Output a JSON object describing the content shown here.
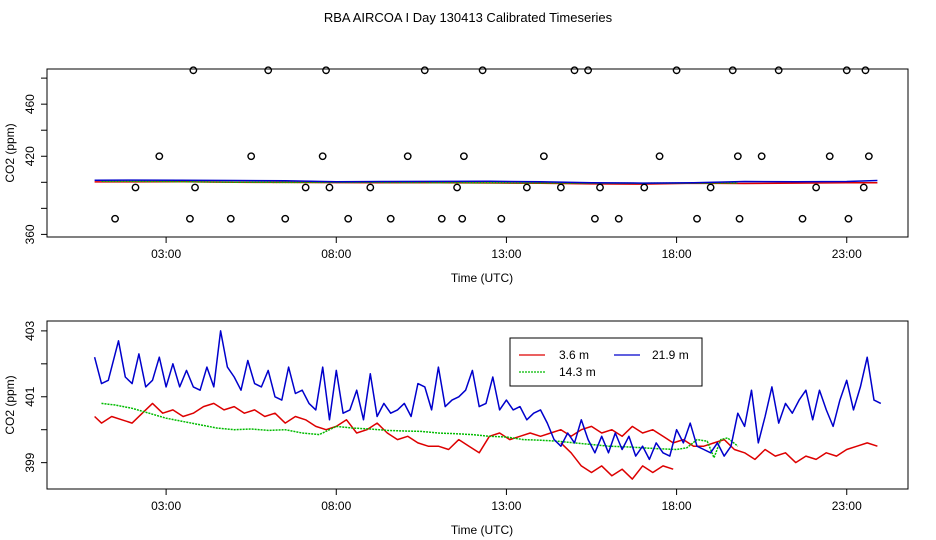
{
  "title": "RBA AIRCOA I  Day 130413  Calibrated Timeseries",
  "chart_data": [
    {
      "type": "line",
      "panel": "top",
      "xlabel": "Time (UTC)",
      "ylabel": "CO2 (ppm)",
      "xlim": [
        -0.5,
        24.8
      ],
      "ylim": [
        358,
        487
      ],
      "xticks": [
        3,
        8,
        13,
        18,
        23
      ],
      "xtick_labels": [
        "03:00",
        "08:00",
        "13:00",
        "18:00",
        "23:00"
      ],
      "yticks": [
        360,
        380,
        400,
        420,
        440,
        460,
        480
      ],
      "ytick_labels": [
        "360",
        "",
        "",
        "420",
        "",
        "460",
        ""
      ],
      "series": [
        {
          "name": "3.6 m",
          "color": "#dd0000",
          "x": [
            0.9,
            2,
            3.5,
            5,
            6.5,
            8,
            9.5,
            11,
            12.5,
            14,
            15.5,
            17,
            18.5,
            20,
            21.5,
            23,
            23.9
          ],
          "y": [
            400.3,
            400.3,
            400.5,
            400.0,
            399.9,
            399.8,
            399.6,
            399.6,
            399.5,
            399.3,
            398.8,
            398.6,
            399.3,
            399.1,
            399.4,
            399.6,
            399.7
          ]
        },
        {
          "name": "14.3 m",
          "color": "#00bb00",
          "x": [
            1.1,
            3,
            5,
            7,
            9,
            11,
            13,
            15,
            17,
            18.5,
            19.8
          ],
          "y": [
            400.8,
            400.6,
            400.1,
            399.9,
            399.9,
            399.8,
            399.6,
            399.4,
            399.3,
            399.4,
            399.5
          ]
        },
        {
          "name": "21.9 m",
          "color": "#0000cc",
          "x": [
            0.9,
            2,
            3.4,
            5,
            6.5,
            8,
            9.5,
            11,
            12.5,
            14,
            15.5,
            17,
            18.5,
            20,
            21.5,
            23,
            23.9
          ],
          "y": [
            401.5,
            401.7,
            401.6,
            401.4,
            401.2,
            400.4,
            400.6,
            400.7,
            400.8,
            400.5,
            399.7,
            399.4,
            399.6,
            400.6,
            400.4,
            400.6,
            401.4
          ]
        },
        {
          "name": "outliers",
          "color": "#000000",
          "style": "points",
          "x": [
            1.5,
            2.1,
            2.8,
            3.7,
            3.8,
            3.85,
            4.9,
            5.5,
            6.0,
            6.5,
            7.1,
            7.6,
            7.7,
            7.8,
            8.35,
            9.0,
            9.6,
            10.1,
            10.6,
            11.1,
            11.55,
            11.7,
            11.75,
            12.3,
            12.85,
            13.6,
            14.1,
            14.6,
            15.0,
            15.4,
            15.6,
            15.75,
            16.3,
            17.05,
            17.5,
            18.0,
            18.6,
            19.0,
            19.65,
            19.8,
            19.85,
            20.5,
            21.0,
            21.7,
            22.1,
            22.5,
            23.0,
            23.05,
            23.5,
            23.55,
            23.65
          ],
          "y": [
            372,
            396,
            420,
            372,
            486,
            396,
            372,
            420,
            486,
            372,
            396,
            420,
            486,
            396,
            372,
            396,
            372,
            420,
            486,
            372,
            396,
            372,
            420,
            486,
            372,
            396,
            420,
            396,
            486,
            486,
            372,
            396,
            372,
            396,
            420,
            486,
            372,
            396,
            486,
            420,
            372,
            420,
            486,
            372,
            396,
            420,
            486,
            372,
            396,
            486,
            420
          ]
        }
      ]
    },
    {
      "type": "line",
      "panel": "bottom",
      "xlabel": "Time (UTC)",
      "ylabel": "CO2 (ppm)",
      "xlim": [
        -0.5,
        24.8
      ],
      "ylim": [
        398.2,
        403.3
      ],
      "xticks": [
        3,
        8,
        13,
        18,
        23
      ],
      "xtick_labels": [
        "03:00",
        "08:00",
        "13:00",
        "18:00",
        "23:00"
      ],
      "yticks": [
        399,
        400,
        401,
        402,
        403
      ],
      "ytick_labels": [
        "399",
        "",
        "401",
        "",
        "403"
      ],
      "legend": {
        "position": "top-center",
        "columns": 2,
        "entries": [
          "3.6 m",
          "21.9 m",
          "14.3 m"
        ]
      },
      "series": [
        {
          "name": "3.6 m",
          "color": "#dd0000",
          "x": [
            0.9,
            1.1,
            1.4,
            1.7,
            2.0,
            2.3,
            2.6,
            2.9,
            3.2,
            3.5,
            3.8,
            4.1,
            4.4,
            4.7,
            5.0,
            5.3,
            5.6,
            5.9,
            6.2,
            6.5,
            6.8,
            7.1,
            7.4,
            7.7,
            8.0,
            8.3,
            8.6,
            8.9,
            9.2,
            9.5,
            9.8,
            10.1,
            10.4,
            10.7,
            11.0,
            11.3,
            11.6,
            11.9,
            12.2,
            12.5,
            12.8,
            13.1,
            13.4,
            13.7,
            14.0,
            14.3,
            14.6,
            14.9,
            15.2,
            15.5,
            15.8,
            16.1,
            16.4,
            16.7,
            17.0,
            17.3,
            17.6,
            17.9,
            18.2,
            18.5,
            18.8,
            19.1,
            19.4,
            19.7,
            20.0,
            20.3,
            20.6,
            20.9,
            21.2,
            21.5,
            21.8,
            22.1,
            22.4,
            22.7,
            23.0,
            23.3,
            23.6,
            23.9
          ],
          "y": [
            400.4,
            400.2,
            400.4,
            400.3,
            400.2,
            400.5,
            400.8,
            400.5,
            400.6,
            400.4,
            400.5,
            400.7,
            400.8,
            400.6,
            400.7,
            400.5,
            400.6,
            400.4,
            400.5,
            400.2,
            400.4,
            400.3,
            400.1,
            400.0,
            400.1,
            400.3,
            399.9,
            400.0,
            400.2,
            399.9,
            399.7,
            399.8,
            399.6,
            399.5,
            399.5,
            399.4,
            399.7,
            399.5,
            399.3,
            399.8,
            399.9,
            399.7,
            399.8,
            399.9,
            399.8,
            399.9,
            400.0,
            399.8,
            400.0,
            400.1,
            399.9,
            400.0,
            399.8,
            400.1,
            399.9,
            400.0,
            399.8,
            399.6,
            399.7,
            399.5,
            399.5,
            399.6,
            399.7,
            399.4,
            399.3,
            399.1,
            399.4,
            399.2,
            399.3,
            399.0,
            399.2,
            399.1,
            399.3,
            399.2,
            399.4,
            399.5,
            399.6,
            399.5
          ],
          "xn": [
            14.6,
            14.9,
            15.2,
            15.5,
            15.8,
            16.1,
            16.4,
            16.7,
            17.0,
            17.3,
            17.6,
            17.9
          ],
          "yn": [
            399.6,
            399.3,
            398.9,
            398.7,
            398.9,
            398.6,
            398.8,
            398.5,
            398.9,
            398.7,
            398.9,
            398.8
          ]
        },
        {
          "name": "14.3 m",
          "color": "#00bb00",
          "x": [
            1.1,
            1.5,
            2.0,
            2.5,
            3.0,
            3.5,
            4.0,
            4.5,
            5.0,
            5.5,
            6.0,
            6.5,
            7.0,
            7.5,
            8.0,
            8.5,
            9.0,
            9.5,
            10.0,
            10.5,
            11.0,
            11.5,
            12.0,
            12.5,
            13.0,
            13.5,
            14.0,
            14.5,
            15.0,
            15.5,
            16.0,
            16.5,
            17.0,
            17.5,
            18.0,
            18.3,
            18.6,
            18.9,
            19.1,
            19.3,
            19.5,
            19.8
          ],
          "y": [
            400.8,
            400.75,
            400.65,
            400.5,
            400.35,
            400.25,
            400.15,
            400.05,
            400.0,
            400.02,
            399.98,
            400.0,
            399.9,
            399.85,
            400.1,
            400.05,
            400.02,
            399.98,
            399.96,
            399.95,
            399.9,
            399.88,
            399.85,
            399.8,
            399.78,
            399.7,
            399.68,
            399.65,
            399.6,
            399.55,
            399.5,
            399.48,
            399.45,
            399.42,
            399.4,
            399.45,
            399.7,
            399.65,
            399.15,
            399.7,
            399.75,
            399.5
          ]
        },
        {
          "name": "21.9 m",
          "color": "#0000cc",
          "x": [
            0.9,
            1.1,
            1.3,
            1.6,
            1.8,
            2.0,
            2.2,
            2.4,
            2.6,
            2.8,
            3.0,
            3.2,
            3.4,
            3.6,
            3.8,
            4.0,
            4.2,
            4.4,
            4.6,
            4.8,
            5.0,
            5.2,
            5.4,
            5.6,
            5.8,
            6.0,
            6.2,
            6.4,
            6.6,
            6.8,
            7.0,
            7.2,
            7.4,
            7.6,
            7.8,
            8.0,
            8.2,
            8.4,
            8.6,
            8.8,
            9.0,
            9.2,
            9.4,
            9.6,
            9.8,
            10.0,
            10.2,
            10.4,
            10.6,
            10.8,
            11.0,
            11.2,
            11.4,
            11.6,
            11.8,
            12.0,
            12.2,
            12.4,
            12.6,
            12.8,
            13.0,
            13.2,
            13.4,
            13.6,
            13.8,
            14.0,
            14.2,
            14.4,
            14.6,
            14.8,
            15.0,
            15.2,
            15.4,
            15.6,
            15.8,
            16.0,
            16.2,
            16.4,
            16.6,
            16.8,
            17.0,
            17.2,
            17.4,
            17.6,
            17.8,
            18.0,
            18.2,
            18.4,
            18.6,
            18.8,
            19.0,
            19.2,
            19.4,
            19.6,
            19.8,
            20.0,
            20.2,
            20.4,
            20.6,
            20.8,
            21.0,
            21.2,
            21.4,
            21.6,
            21.8,
            22.0,
            22.2,
            22.4,
            22.6,
            22.8,
            23.0,
            23.2,
            23.4,
            23.6,
            23.8,
            24.0
          ],
          "y": [
            402.2,
            401.4,
            401.5,
            402.7,
            401.6,
            401.4,
            402.3,
            401.3,
            401.5,
            402.2,
            401.3,
            402.0,
            401.3,
            401.8,
            401.3,
            401.2,
            401.9,
            401.3,
            403.0,
            401.9,
            401.6,
            401.2,
            402.1,
            401.4,
            401.3,
            401.8,
            401.0,
            400.9,
            401.9,
            401.1,
            401.2,
            400.8,
            400.6,
            401.9,
            400.3,
            401.8,
            400.5,
            400.6,
            401.2,
            400.3,
            401.7,
            400.4,
            400.8,
            400.5,
            400.6,
            400.8,
            400.4,
            401.4,
            401.3,
            400.6,
            401.9,
            400.7,
            400.9,
            401.0,
            401.2,
            401.8,
            400.7,
            400.8,
            401.6,
            400.6,
            400.9,
            400.6,
            400.7,
            400.3,
            400.5,
            400.6,
            400.2,
            399.7,
            399.5,
            399.9,
            399.6,
            400.3,
            399.7,
            399.3,
            399.8,
            399.3,
            399.9,
            399.4,
            399.8,
            399.2,
            399.5,
            399.1,
            399.6,
            399.3,
            399.2,
            400.0,
            399.6,
            400.2,
            399.5,
            399.4,
            399.3,
            399.6,
            399.2,
            399.5,
            400.5,
            400.1,
            401.2,
            399.6,
            400.4,
            401.3,
            400.2,
            400.8,
            400.5,
            400.9,
            401.2,
            400.3,
            401.2,
            400.6,
            400.1,
            400.9,
            401.5,
            400.6,
            401.3,
            402.2,
            400.9,
            400.8
          ]
        }
      ]
    }
  ]
}
